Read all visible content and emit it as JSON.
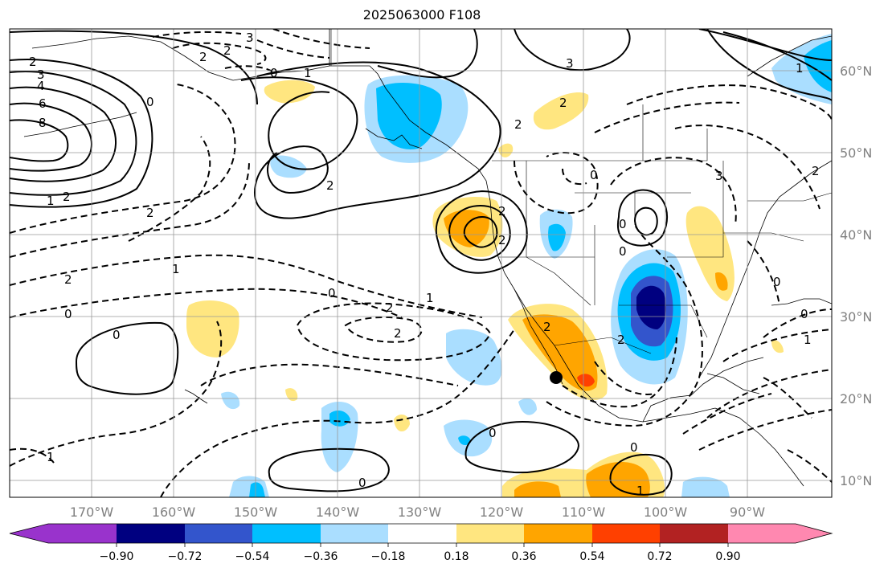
{
  "title": "2025063000 F108",
  "map": {
    "lon_labels": [
      "170°W",
      "160°W",
      "150°W",
      "140°W",
      "130°W",
      "120°W",
      "110°W",
      "100°W",
      "90°W"
    ],
    "lat_labels": [
      "60°N",
      "50°N",
      "40°N",
      "30°N",
      "20°N",
      "10°N"
    ],
    "contour_labels": [
      "2",
      "3",
      "4",
      "6",
      "8",
      "2",
      "1",
      "2",
      "3",
      "1",
      "0",
      "2",
      "2",
      "2",
      "2",
      "3",
      "2",
      "0",
      "2",
      "1",
      "0",
      "2",
      "0",
      "2",
      "1",
      "0",
      "0",
      "1",
      "0",
      "2",
      "0",
      "2",
      "0",
      "3",
      "0",
      "2",
      "0",
      "1",
      "2",
      "2",
      "1",
      "0",
      "1",
      "0"
    ],
    "marker": "black-dot"
  },
  "colorbar": {
    "ticks": [
      "−0.90",
      "−0.72",
      "−0.54",
      "−0.36",
      "−0.18",
      "0.18",
      "0.36",
      "0.54",
      "0.72",
      "0.90"
    ],
    "colors": {
      "under": "#9933cc",
      "neg090": "#000080",
      "neg072": "#3355cc",
      "neg054": "#00bfff",
      "neg036": "#aadeff",
      "neutral": "#ffffff",
      "pos018": "#ffe680",
      "pos036": "#ffa500",
      "pos054": "#ff4000",
      "pos072": "#b22222",
      "over": "#ff88b0"
    }
  }
}
